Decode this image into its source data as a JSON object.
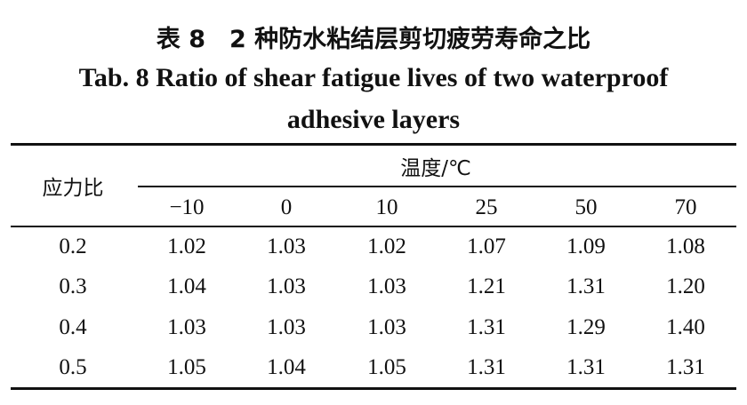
{
  "table": {
    "title_cn": "表 8　2 种防水粘结层剪切疲劳寿命之比",
    "title_en": "Tab. 8 Ratio of shear fatigue lives of two waterproof adhesive layers",
    "row_header": "应力比",
    "group_header": "温度/℃",
    "columns": [
      "−10",
      "0",
      "10",
      "25",
      "50",
      "70"
    ],
    "rows": [
      {
        "label": "0.2",
        "cells": [
          "1.02",
          "1.03",
          "1.02",
          "1.07",
          "1.09",
          "1.08"
        ]
      },
      {
        "label": "0.3",
        "cells": [
          "1.04",
          "1.03",
          "1.03",
          "1.21",
          "1.31",
          "1.20"
        ]
      },
      {
        "label": "0.4",
        "cells": [
          "1.03",
          "1.03",
          "1.03",
          "1.31",
          "1.29",
          "1.40"
        ]
      },
      {
        "label": "0.5",
        "cells": [
          "1.05",
          "1.04",
          "1.05",
          "1.31",
          "1.31",
          "1.31"
        ]
      }
    ]
  }
}
